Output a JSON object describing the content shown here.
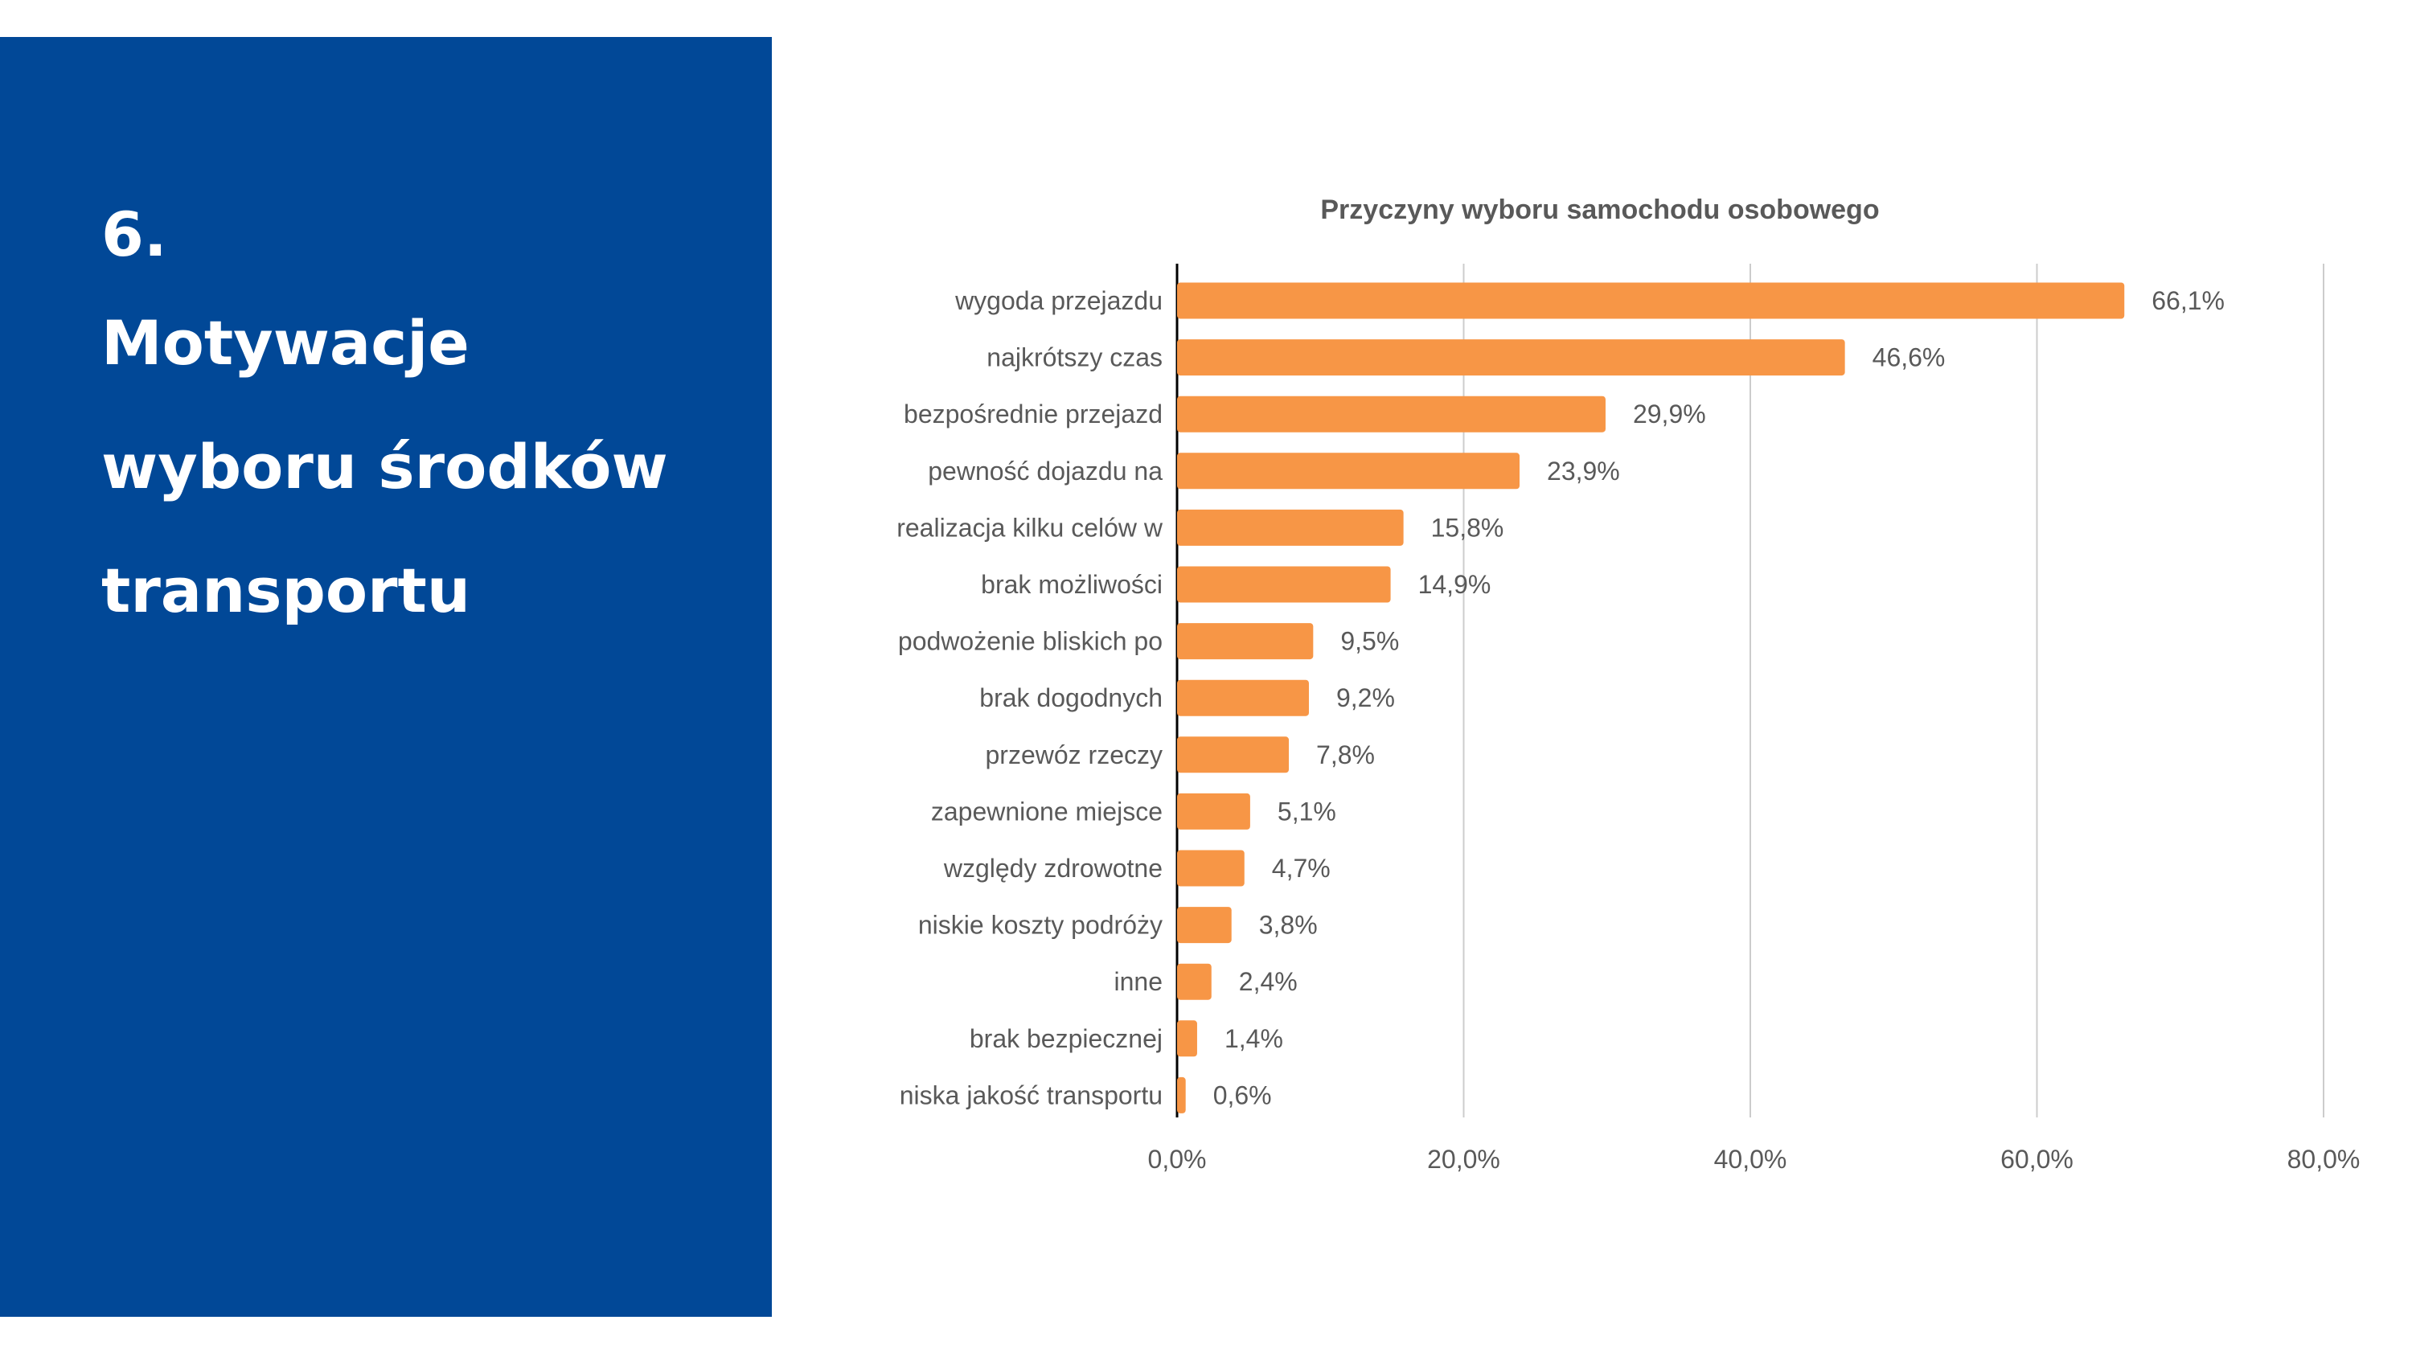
{
  "section": {
    "number": "6.",
    "title_lines": [
      "Motywacje",
      "wyboru środków",
      "transportu"
    ]
  },
  "colors": {
    "panel_background": "#014897",
    "panel_text": "#ffffff",
    "bar": "#F79646",
    "grid": "#cccccc",
    "axis": "#000000",
    "chart_text": "#595959"
  },
  "chart_data": {
    "type": "bar",
    "orientation": "horizontal",
    "title": "Przyczyny wyboru samochodu osobowego",
    "xlabel": "",
    "ylabel": "",
    "categories": [
      "wygoda przejazdu",
      "najkrótszy czas",
      "bezpośrednie przejazd",
      "pewność dojazdu na",
      "realizacja kilku celów w",
      "brak możliwości",
      "podwożenie bliskich po",
      "brak dogodnych",
      "przewóz rzeczy",
      "zapewnione miejsce",
      "względy zdrowotne",
      "niskie koszty podróży",
      "inne",
      "brak bezpiecznej",
      "niska jakość transportu"
    ],
    "values": [
      66.1,
      46.6,
      29.9,
      23.9,
      15.8,
      14.9,
      9.5,
      9.2,
      7.8,
      5.1,
      4.7,
      3.8,
      2.4,
      1.4,
      0.6
    ],
    "value_labels": [
      "66,1%",
      "46,6%",
      "29,9%",
      "23,9%",
      "15,8%",
      "14,9%",
      "9,5%",
      "9,2%",
      "7,8%",
      "5,1%",
      "4,7%",
      "3,8%",
      "2,4%",
      "1,4%",
      "0,6%"
    ],
    "xlim": [
      0,
      80
    ],
    "x_ticks": [
      0,
      20,
      40,
      60,
      80
    ],
    "x_tick_labels": [
      "0,0%",
      "20,0%",
      "40,0%",
      "60,0%",
      "80,0%"
    ],
    "grid": true,
    "legend": "none"
  }
}
